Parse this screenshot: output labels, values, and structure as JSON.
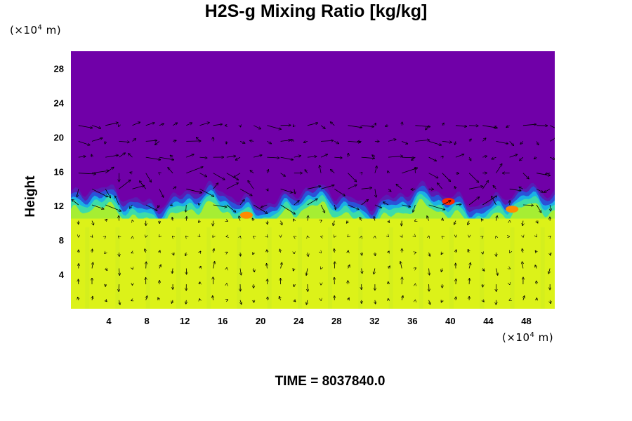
{
  "chart_data": {
    "type": "heatmap",
    "title": "H2S-g Mixing Ratio [kg/kg]",
    "ylabel": "Height",
    "y_unit": {
      "prefix": "(×10",
      "exp": "4",
      "suffix": " m)"
    },
    "x_unit": {
      "prefix": "(×10",
      "exp": "4",
      "suffix": " m)"
    },
    "xlim": [
      0,
      51
    ],
    "ylim": [
      0,
      30
    ],
    "x_ticks": [
      4,
      8,
      12,
      16,
      20,
      24,
      28,
      32,
      36,
      40,
      44,
      48
    ],
    "y_ticks": [
      4,
      8,
      12,
      16,
      20,
      24,
      28
    ],
    "fields": {
      "lower_layer": {
        "y_range": [
          0,
          10.5
        ],
        "color": "#dcf219"
      },
      "transition": {
        "y_range": [
          10.5,
          13.5
        ],
        "colors": [
          "#a6ee33",
          "#3ddca8",
          "#1ab0e6",
          "#2a52d8",
          "#5a1ab4"
        ]
      },
      "upper_layer": {
        "y_range": [
          13.5,
          30
        ],
        "color": "#7000a8"
      },
      "hotspots": [
        {
          "x": 39.8,
          "y": 12.5,
          "color": "#ff2a00"
        },
        {
          "x": 18.5,
          "y": 10.9,
          "color": "#ff8a00"
        },
        {
          "x": 46.5,
          "y": 11.6,
          "color": "#ff8a00"
        }
      ]
    },
    "vectors": "wind field arrows overlay",
    "time_label": "TIME = 8037840.0"
  }
}
